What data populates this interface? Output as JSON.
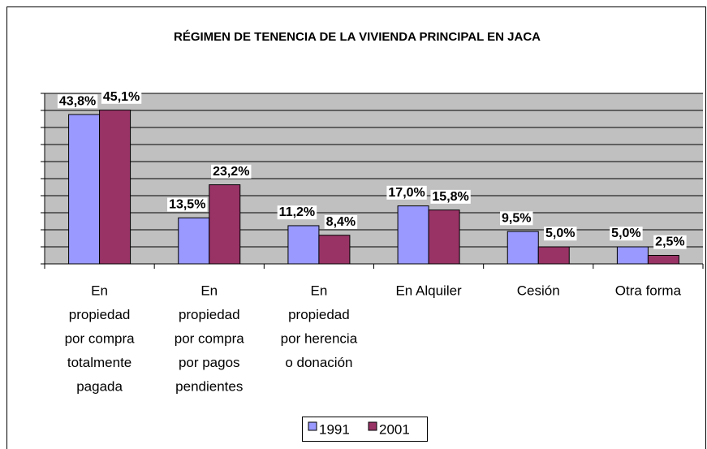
{
  "chart_data": {
    "type": "bar",
    "title": "RÉGIMEN DE TENENCIA DE LA VIVIENDA PRINCIPAL EN JACA",
    "categories": [
      [
        "En",
        "propiedad",
        "por compra",
        "totalmente",
        "pagada"
      ],
      [
        "En",
        "propiedad",
        "por compra",
        "por pagos",
        "pendientes"
      ],
      [
        "En",
        "propiedad",
        "por herencia",
        "o donación"
      ],
      [
        "En Alquiler"
      ],
      [
        "Cesión"
      ],
      [
        "Otra forma"
      ]
    ],
    "series": [
      {
        "name": "1991",
        "color": "#9999ff",
        "values": [
          43.8,
          13.5,
          11.2,
          17.0,
          9.5,
          5.0
        ],
        "value_labels": [
          "43,8%",
          "13,5%",
          "11,2%",
          "17,0%",
          "9,5%",
          "5,0%"
        ]
      },
      {
        "name": "2001",
        "color": "#993366",
        "values": [
          45.1,
          23.2,
          8.4,
          15.8,
          5.0,
          2.5
        ],
        "value_labels": [
          "45,1%",
          "23,2%",
          "8,4%",
          "15,8%",
          "5,0%",
          "2,5%"
        ]
      }
    ],
    "ylim": [
      0,
      50
    ],
    "yticks": [
      0,
      5,
      10,
      15,
      20,
      25,
      30,
      35,
      40,
      45,
      50
    ],
    "grid": true,
    "legend": "bottom"
  }
}
